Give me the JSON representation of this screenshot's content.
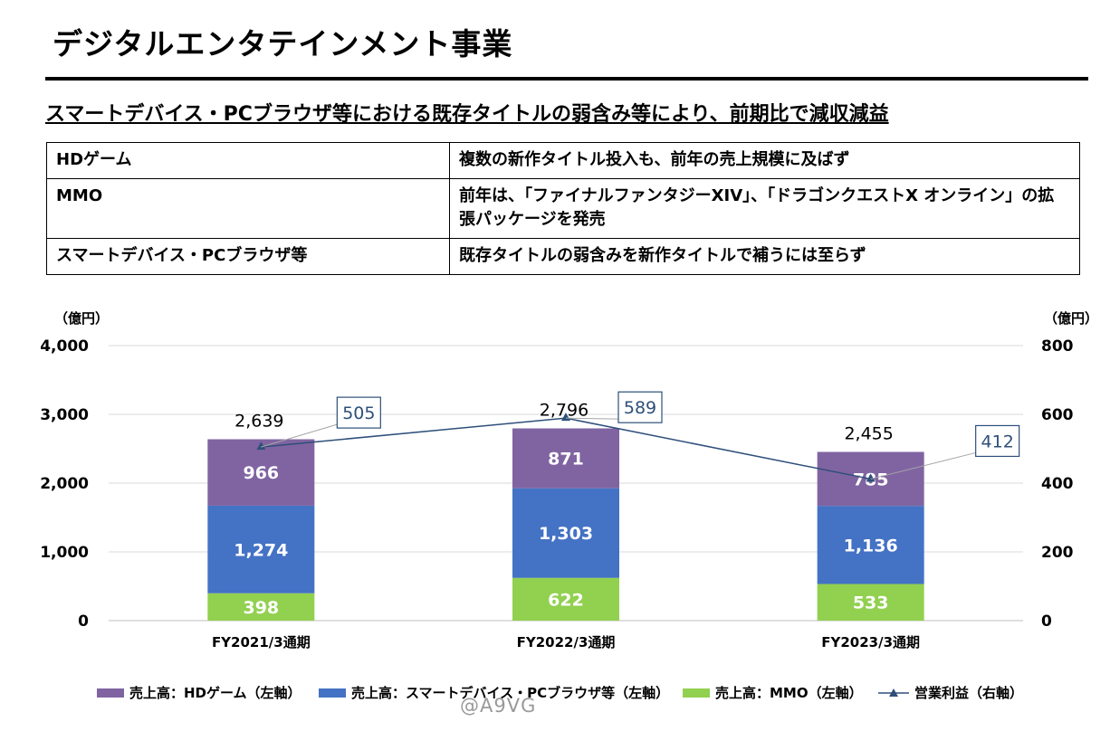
{
  "header": {
    "title": "デジタルエンタテインメント事業",
    "subtitle": "スマートデバイス・PCブラウザ等における既存タイトルの弱含み等により、前期比で減収減益"
  },
  "table": {
    "rows": [
      {
        "segment": "HDゲーム",
        "description": "複数の新作タイトル投入も、前年の売上規模に及ばず"
      },
      {
        "segment": "MMO",
        "description": "前年は、「ファイナルファンタジーXIV」、「ドラゴンクエストX オンライン」の拡張パッケージを発売"
      },
      {
        "segment": "スマートデバイス・PCブラウザ等",
        "description": "既存タイトルの弱含みを新作タイトルで補うには至らず"
      }
    ]
  },
  "colors": {
    "hd_game": "#8064a2",
    "smart_device": "#4472c4",
    "mmo": "#92d050",
    "operating_income": "#2e4f7a"
  },
  "chart_data": {
    "type": "bar",
    "stacked": true,
    "categories": [
      "FY2021/3通期",
      "FY2022/3通期",
      "FY2023/3通期"
    ],
    "left_axis": {
      "unit": "（億円）",
      "ylim": [
        0,
        4000
      ],
      "ticks": [
        "0",
        "1,000",
        "2,000",
        "3,000",
        "4,000"
      ]
    },
    "right_axis": {
      "unit": "（億円）",
      "ylim": [
        0,
        800
      ],
      "ticks": [
        "0",
        "200",
        "400",
        "600",
        "800"
      ]
    },
    "series": [
      {
        "name": "売上高：MMO（左軸）",
        "key": "mmo",
        "values": [
          398,
          622,
          533
        ],
        "labels": [
          "398",
          "622",
          "533"
        ]
      },
      {
        "name": "売上高：スマートデバイス・PCブラウザ等（左軸）",
        "key": "smart_device",
        "values": [
          1274,
          1303,
          1136
        ],
        "labels": [
          "1,274",
          "1,303",
          "1,136"
        ]
      },
      {
        "name": "売上高：HDゲーム（左軸）",
        "key": "hd_game",
        "values": [
          966,
          871,
          785
        ],
        "labels": [
          "966",
          "871",
          "785"
        ]
      }
    ],
    "totals": [
      2639,
      2796,
      2455
    ],
    "total_labels": [
      "2,639",
      "2,796",
      "2,455"
    ],
    "line": {
      "name": "営業利益（右軸）",
      "key": "operating_income",
      "values": [
        505,
        589,
        412
      ],
      "labels": [
        "505",
        "589",
        "412"
      ]
    },
    "legend": [
      "売上高：HDゲーム（左軸）",
      "売上高：スマートデバイス・PCブラウザ等（左軸）",
      "売上高：MMO（左軸）",
      "営業利益（右軸）"
    ],
    "grid": true,
    "legend_position": "bottom"
  },
  "watermark": "@A9VG"
}
